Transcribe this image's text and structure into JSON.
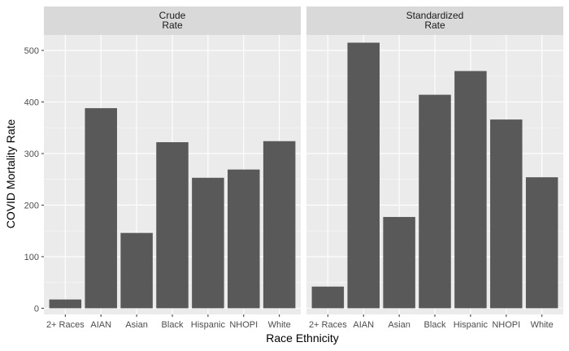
{
  "chart_data": {
    "type": "bar",
    "xlabel": "Race Ethnicity",
    "ylabel": "COVID Mortality Rate",
    "ylim": [
      -12,
      530
    ],
    "yticks": [
      0,
      100,
      200,
      300,
      400,
      500
    ],
    "categories": [
      "2+ Races",
      "AIAN",
      "Asian",
      "Black",
      "Hispanic",
      "NHOPI",
      "White"
    ],
    "grid": true,
    "colors": {
      "bar": "#595959",
      "panel": "#ebebeb",
      "grid_major": "#ffffff",
      "strip": "#d9d9d9"
    },
    "panels": [
      {
        "strip_lines": [
          "Crude",
          "Rate"
        ],
        "values": [
          17,
          388,
          146,
          322,
          253,
          269,
          324
        ]
      },
      {
        "strip_lines": [
          "Standardized",
          "Rate"
        ],
        "values": [
          42,
          515,
          177,
          414,
          460,
          366,
          254
        ]
      }
    ]
  }
}
